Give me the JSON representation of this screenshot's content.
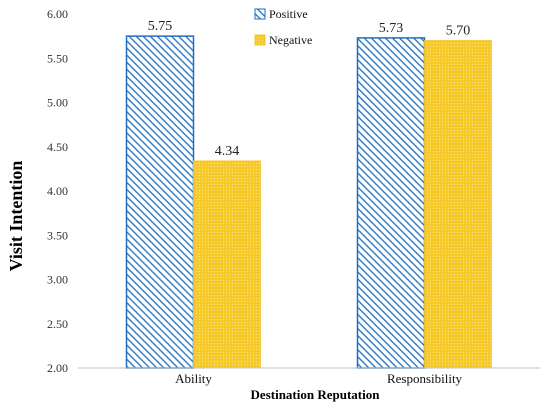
{
  "chart_data": {
    "type": "bar",
    "categories": [
      "Ability",
      "Responsibility"
    ],
    "series": [
      {
        "name": "Positive",
        "values": [
          5.75,
          5.73
        ],
        "color": "#1f6fbf",
        "pattern": "diagonal-hatch"
      },
      {
        "name": "Negative",
        "values": [
          4.34,
          5.7
        ],
        "color": "#f4c430",
        "pattern": "dotted"
      }
    ],
    "value_labels": [
      [
        "5.75",
        "5.73"
      ],
      [
        "4.34",
        "5.70"
      ]
    ],
    "title": "",
    "xlabel": "Destination Reputation",
    "ylabel": "Visit Intention",
    "ylim": [
      2.0,
      6.0
    ],
    "ytick_step": 0.5,
    "yticks": [
      "2.00",
      "2.50",
      "3.00",
      "3.50",
      "4.00",
      "4.50",
      "5.00",
      "5.50",
      "6.00"
    ],
    "grid": false,
    "legend_position": "top-center"
  }
}
